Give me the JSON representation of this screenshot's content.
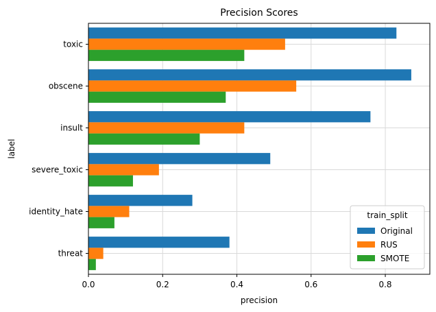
{
  "chart_data": {
    "type": "bar",
    "orientation": "horizontal",
    "title": "Precision Scores",
    "xlabel": "precision",
    "ylabel": "label",
    "categories": [
      "toxic",
      "obscene",
      "insult",
      "severe_toxic",
      "identity_hate",
      "threat"
    ],
    "series": [
      {
        "name": "Original",
        "color": "#1f77b4",
        "values": [
          0.83,
          0.87,
          0.76,
          0.49,
          0.28,
          0.38
        ]
      },
      {
        "name": "RUS",
        "color": "#ff7f0e",
        "values": [
          0.53,
          0.56,
          0.42,
          0.19,
          0.11,
          0.04
        ]
      },
      {
        "name": "SMOTE",
        "color": "#2ca02c",
        "values": [
          0.42,
          0.37,
          0.3,
          0.12,
          0.07,
          0.02
        ]
      }
    ],
    "xlim": [
      0,
      0.92
    ],
    "xticks": [
      "0.0",
      "0.2",
      "0.4",
      "0.6",
      "0.8"
    ],
    "grid": true,
    "legend": {
      "title": "train_split",
      "placement": "lower-right"
    }
  }
}
